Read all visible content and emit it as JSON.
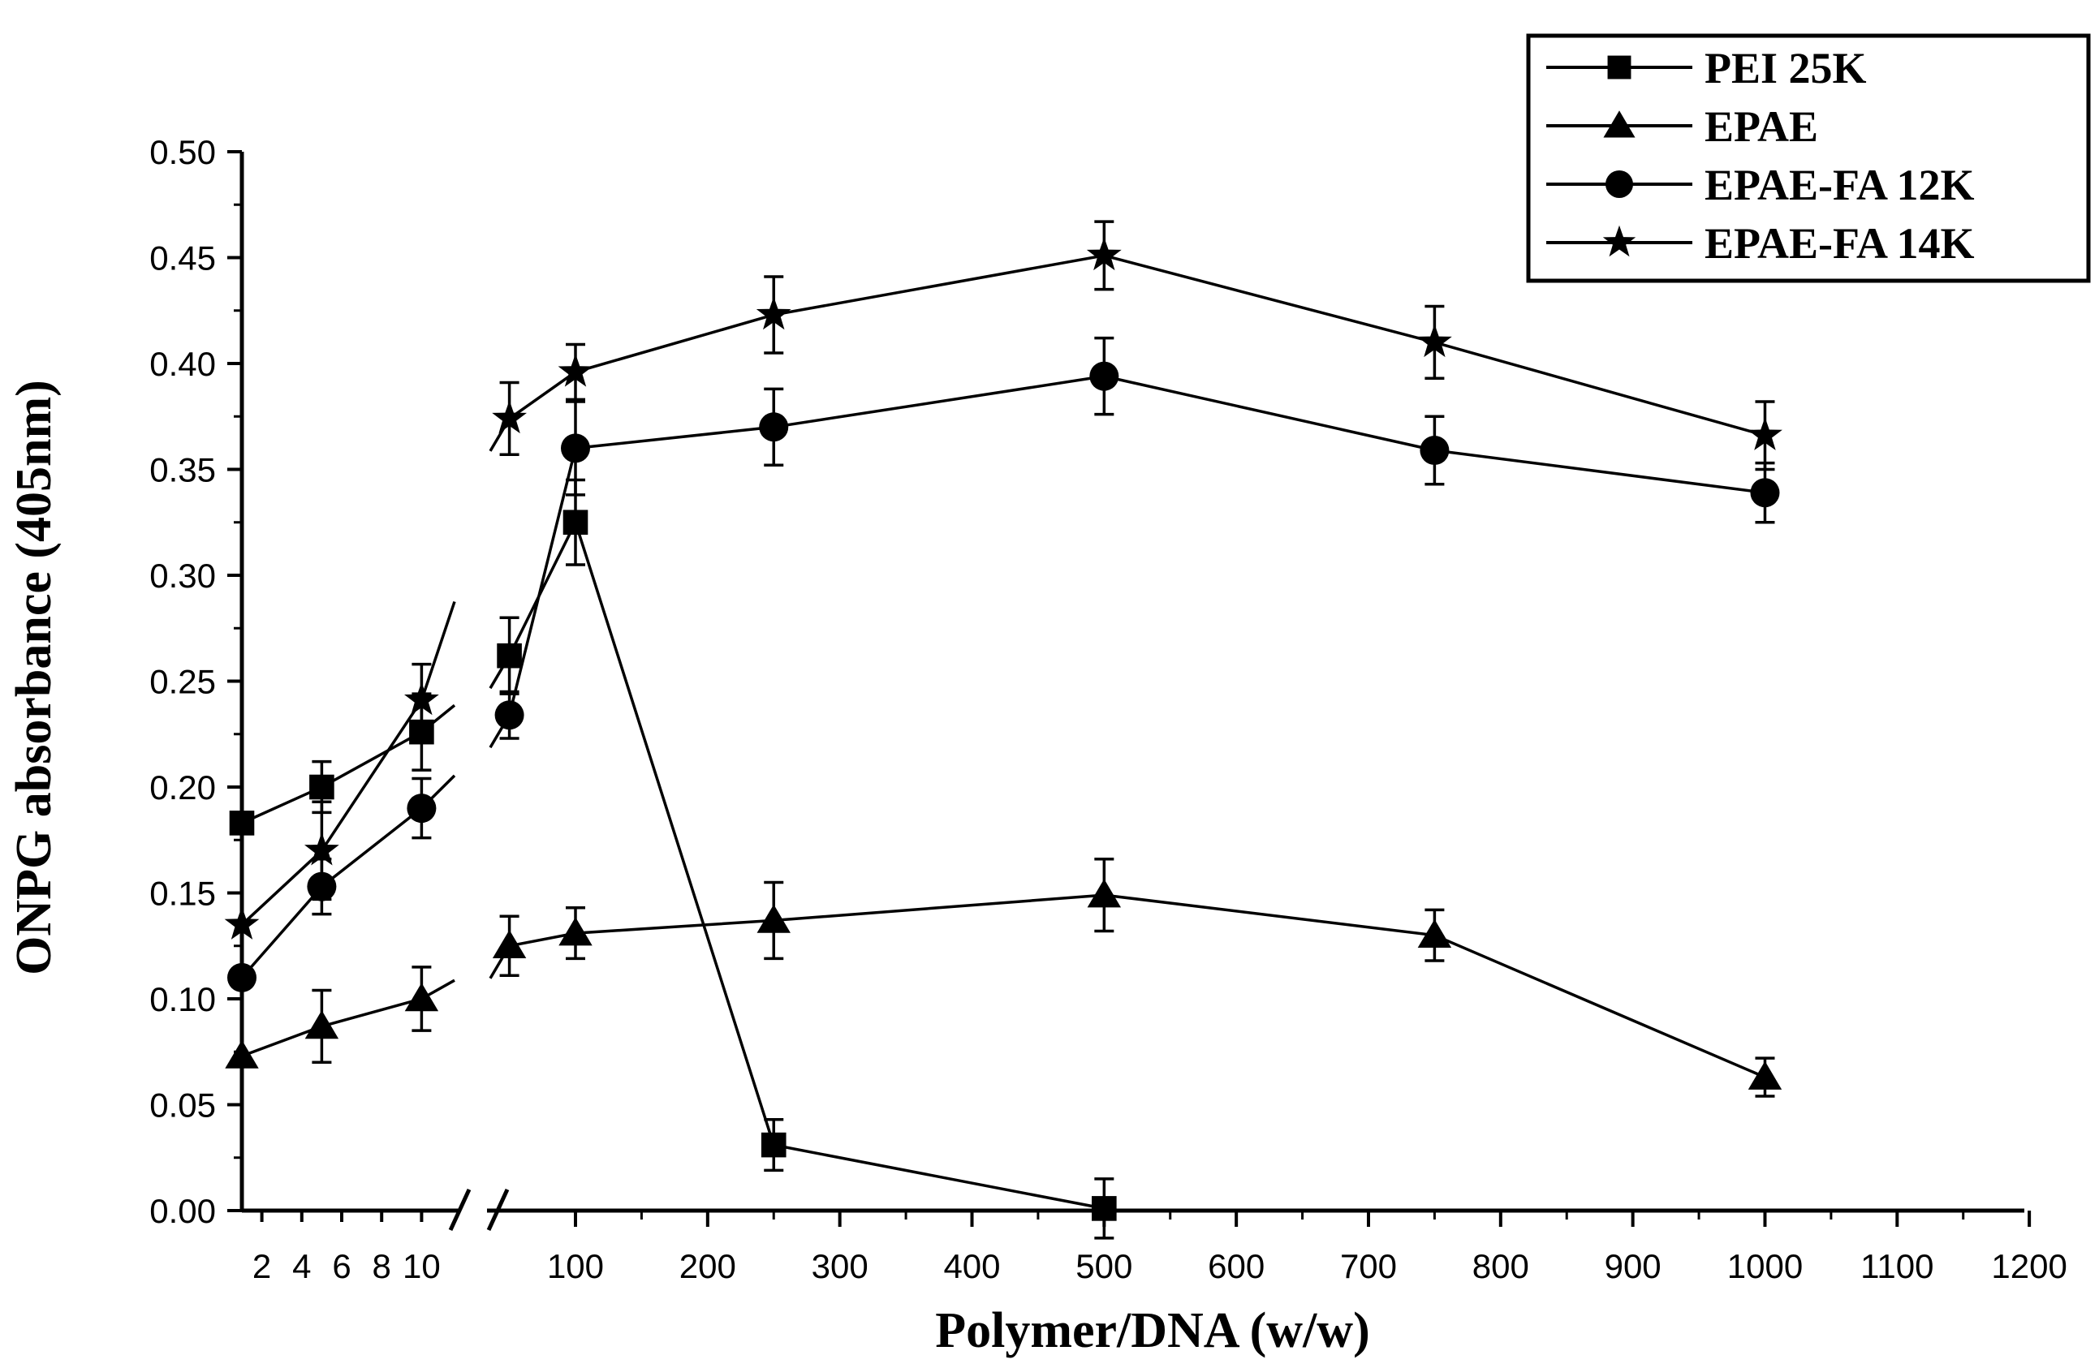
{
  "chart_data": {
    "type": "line",
    "xlabel": "Polymer/DNA (w/w)",
    "ylabel": "ONPG absorbance (405nm)",
    "x_axis_broken": true,
    "ylim": [
      0,
      0.5
    ],
    "y_ticks": [
      "0.00",
      "0.05",
      "0.10",
      "0.15",
      "0.20",
      "0.25",
      "0.30",
      "0.35",
      "0.40",
      "0.45",
      "0.50"
    ],
    "x_ticks_left": [
      "2",
      "4",
      "6",
      "8",
      "10"
    ],
    "x_ticks_right": [
      "100",
      "200",
      "300",
      "400",
      "500",
      "600",
      "700",
      "800",
      "900",
      "1000",
      "1100",
      "1200"
    ],
    "legend_position": "top-right",
    "series": [
      {
        "name": "PEI 25K",
        "marker": "square",
        "points": [
          {
            "x": 1,
            "y": 0.183,
            "err": 0
          },
          {
            "x": 5,
            "y": 0.2,
            "err": 0.012
          },
          {
            "x": 10,
            "y": 0.226,
            "err": 0.018
          },
          {
            "x": 50,
            "y": 0.262,
            "err": 0.018
          },
          {
            "x": 100,
            "y": 0.325,
            "err": 0.02
          },
          {
            "x": 250,
            "y": 0.031,
            "err": 0.012
          },
          {
            "x": 500,
            "y": 0.001,
            "err": 0.014
          }
        ]
      },
      {
        "name": "EPAE",
        "marker": "triangle",
        "points": [
          {
            "x": 1,
            "y": 0.073,
            "err": 0
          },
          {
            "x": 5,
            "y": 0.087,
            "err": 0.017
          },
          {
            "x": 10,
            "y": 0.1,
            "err": 0.015
          },
          {
            "x": 50,
            "y": 0.125,
            "err": 0.014
          },
          {
            "x": 100,
            "y": 0.131,
            "err": 0.012
          },
          {
            "x": 250,
            "y": 0.137,
            "err": 0.018
          },
          {
            "x": 500,
            "y": 0.149,
            "err": 0.017
          },
          {
            "x": 750,
            "y": 0.13,
            "err": 0.012
          },
          {
            "x": 1000,
            "y": 0.063,
            "err": 0.009
          }
        ]
      },
      {
        "name": "EPAE-FA 12K",
        "marker": "circle",
        "points": [
          {
            "x": 1,
            "y": 0.11,
            "err": 0
          },
          {
            "x": 5,
            "y": 0.153,
            "err": 0.013
          },
          {
            "x": 10,
            "y": 0.19,
            "err": 0.014
          },
          {
            "x": 50,
            "y": 0.234,
            "err": 0.011
          },
          {
            "x": 100,
            "y": 0.36,
            "err": 0.022
          },
          {
            "x": 250,
            "y": 0.37,
            "err": 0.018
          },
          {
            "x": 500,
            "y": 0.394,
            "err": 0.018
          },
          {
            "x": 750,
            "y": 0.359,
            "err": 0.016
          },
          {
            "x": 1000,
            "y": 0.339,
            "err": 0.014
          }
        ]
      },
      {
        "name": "EPAE-FA 14K",
        "marker": "star",
        "points": [
          {
            "x": 1,
            "y": 0.135,
            "err": 0
          },
          {
            "x": 5,
            "y": 0.17,
            "err": 0.023
          },
          {
            "x": 10,
            "y": 0.241,
            "err": 0.017
          },
          {
            "x": 50,
            "y": 0.374,
            "err": 0.017
          },
          {
            "x": 100,
            "y": 0.396,
            "err": 0.013
          },
          {
            "x": 250,
            "y": 0.423,
            "err": 0.018
          },
          {
            "x": 500,
            "y": 0.451,
            "err": 0.016
          },
          {
            "x": 750,
            "y": 0.41,
            "err": 0.017
          },
          {
            "x": 1000,
            "y": 0.366,
            "err": 0.016
          }
        ]
      }
    ]
  }
}
